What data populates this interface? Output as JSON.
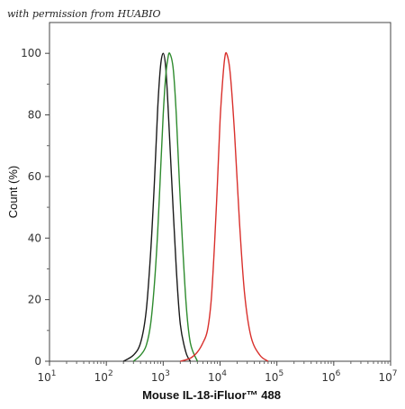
{
  "watermark": "with permission from HUABIO",
  "chart_data": {
    "type": "line",
    "xlabel": "Mouse IL-18-iFluor™ 488",
    "ylabel": "Count  (%)",
    "x_scale": "log",
    "xlim": [
      10,
      10000000
    ],
    "ylim": [
      0,
      110
    ],
    "x_ticks": [
      {
        "value": 10,
        "base": "10",
        "exp": "1"
      },
      {
        "value": 100,
        "base": "10",
        "exp": "2"
      },
      {
        "value": 1000,
        "base": "10",
        "exp": "3"
      },
      {
        "value": 10000,
        "base": "10",
        "exp": "4"
      },
      {
        "value": 100000,
        "base": "10",
        "exp": "5"
      },
      {
        "value": 1000000,
        "base": "10",
        "exp": "6"
      },
      {
        "value": 10000000,
        "base": "10",
        "exp": "7"
      }
    ],
    "y_ticks": [
      0,
      20,
      40,
      60,
      80,
      100
    ],
    "grid": false,
    "legend": "none",
    "series": [
      {
        "color": "#1a1a1a",
        "x": [
          200,
          300,
          400,
          500,
          600,
          700,
          800,
          900,
          1000,
          1100,
          1200,
          1400,
          1700,
          2000,
          2500,
          3000
        ],
        "y": [
          0,
          2,
          6,
          16,
          35,
          58,
          82,
          96,
          100,
          96,
          85,
          60,
          30,
          12,
          3,
          0
        ]
      },
      {
        "color": "#2e8b2e",
        "x": [
          300,
          400,
          500,
          600,
          700,
          800,
          900,
          1000,
          1100,
          1200,
          1300,
          1500,
          1700,
          2000,
          2500,
          3000,
          4000
        ],
        "y": [
          0,
          2,
          5,
          12,
          25,
          42,
          62,
          80,
          92,
          98,
          100,
          95,
          80,
          52,
          20,
          6,
          0
        ]
      },
      {
        "color": "#d9302c",
        "x": [
          2000,
          3000,
          4000,
          5000,
          6000,
          7000,
          8000,
          9000,
          10000,
          11000,
          12000,
          13000,
          15000,
          18000,
          22000,
          27000,
          35000,
          50000,
          70000
        ],
        "y": [
          0,
          1,
          3,
          6,
          10,
          20,
          38,
          58,
          78,
          90,
          98,
          100,
          94,
          74,
          45,
          22,
          8,
          2,
          0
        ]
      }
    ]
  }
}
